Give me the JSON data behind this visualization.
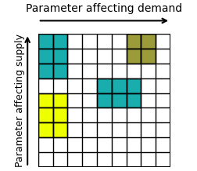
{
  "grid_cols": 9,
  "grid_rows": 9,
  "title": "Parameter affecting demand",
  "ylabel": "Parameter affecting supply",
  "colored_cells": [
    {
      "row": 1,
      "col": 1,
      "color": "#1AADAD"
    },
    {
      "row": 1,
      "col": 2,
      "color": "#1AADAD"
    },
    {
      "row": 2,
      "col": 1,
      "color": "#1AADAD"
    },
    {
      "row": 2,
      "col": 2,
      "color": "#1AADAD"
    },
    {
      "row": 3,
      "col": 1,
      "color": "#1AADAD"
    },
    {
      "row": 3,
      "col": 2,
      "color": "#1AADAD"
    },
    {
      "row": 1,
      "col": 7,
      "color": "#9B9B3A"
    },
    {
      "row": 1,
      "col": 8,
      "color": "#9B9B3A"
    },
    {
      "row": 2,
      "col": 7,
      "color": "#9B9B3A"
    },
    {
      "row": 2,
      "col": 8,
      "color": "#9B9B3A"
    },
    {
      "row": 4,
      "col": 5,
      "color": "#1AADAD"
    },
    {
      "row": 4,
      "col": 6,
      "color": "#1AADAD"
    },
    {
      "row": 4,
      "col": 7,
      "color": "#1AADAD"
    },
    {
      "row": 5,
      "col": 5,
      "color": "#1AADAD"
    },
    {
      "row": 5,
      "col": 6,
      "color": "#1AADAD"
    },
    {
      "row": 5,
      "col": 7,
      "color": "#1AADAD"
    },
    {
      "row": 5,
      "col": 1,
      "color": "#EEFF00"
    },
    {
      "row": 5,
      "col": 2,
      "color": "#EEFF00"
    },
    {
      "row": 6,
      "col": 1,
      "color": "#EEFF00"
    },
    {
      "row": 6,
      "col": 2,
      "color": "#EEFF00"
    },
    {
      "row": 7,
      "col": 1,
      "color": "#EEFF00"
    },
    {
      "row": 7,
      "col": 2,
      "color": "#EEFF00"
    }
  ],
  "cell_edge_color": "#000000",
  "cell_linewidth": 1.0,
  "grid_border_color": "#000000",
  "grid_border_linewidth": 1.5,
  "background_color": "#ffffff",
  "title_fontsize": 10,
  "ylabel_fontsize": 9
}
